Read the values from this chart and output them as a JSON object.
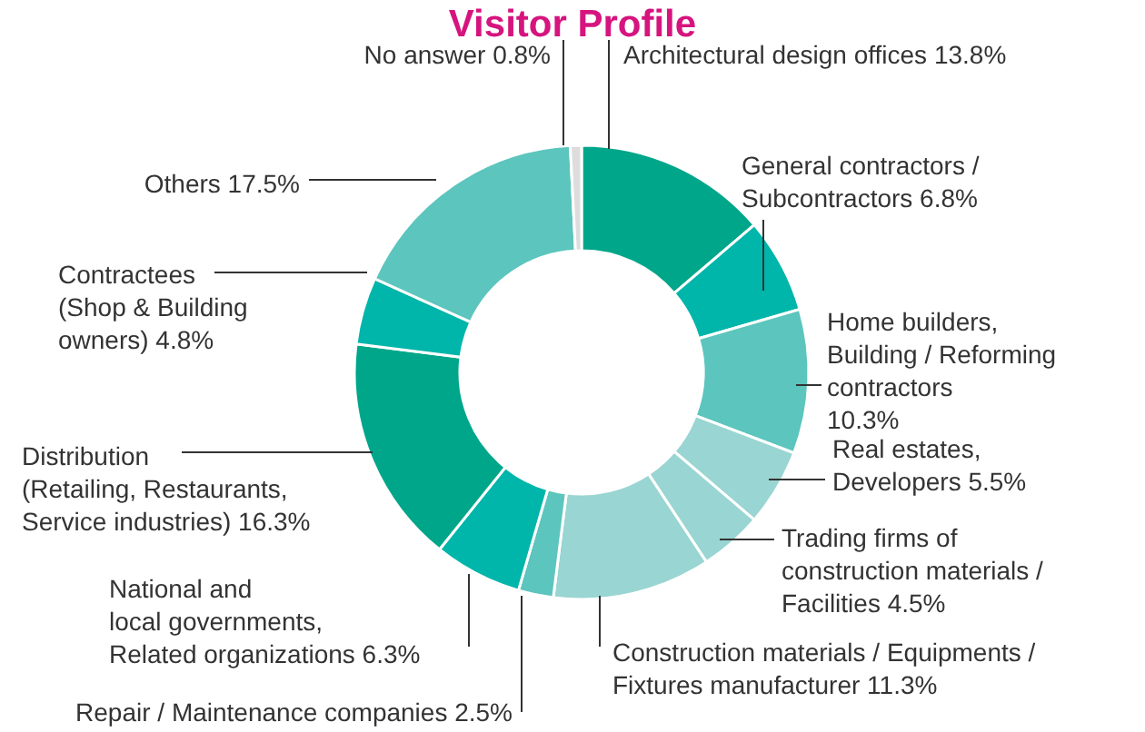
{
  "chart_data": {
    "type": "donut",
    "title": "Visitor Profile",
    "categories": [
      "Architectural design offices",
      "General contractors /\nSubcontractors",
      "Home builders,\nBuilding / Reforming\ncontractors",
      "Real estates,\nDevelopers",
      "Trading firms of\nconstruction materials /\nFacilities",
      "Construction materials / Equipments /\nFixtures manufacturer",
      "Repair / Maintenance companies",
      "National and\nlocal governments,\nRelated organizations",
      "Distribution\n(Retailing, Restaurants,\nService industries)",
      "Contractees\n(Shop & Building\nowners)",
      "Others",
      "No answer"
    ],
    "values": [
      13.8,
      6.8,
      10.3,
      5.5,
      4.5,
      11.3,
      2.5,
      6.3,
      16.3,
      4.8,
      17.5,
      0.8
    ],
    "colors": [
      "#00a68a",
      "#00b5aa",
      "#5cc5bd",
      "#99d5d2",
      "#99d5d2",
      "#99d5d2",
      "#5cc5bd",
      "#00b5aa",
      "#00a68a",
      "#00b5aa",
      "#5cc5bd",
      "#dddddd"
    ],
    "value_labels": [
      "13.8%",
      "6.8%",
      "10.3%",
      "5.5%",
      "4.5%",
      "11.3%",
      "2.5%",
      "6.3%",
      "16.3%",
      "4.8%",
      "17.5%",
      "0.8%"
    ]
  }
}
